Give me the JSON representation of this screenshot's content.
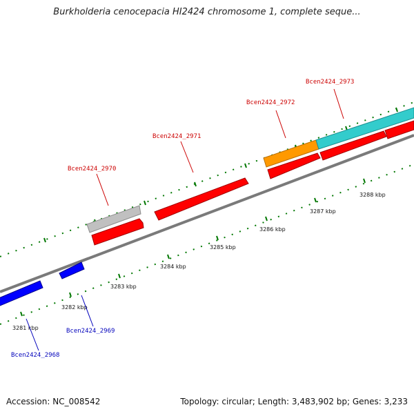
{
  "title": "Burkholderia cenocepacia HI2424 chromosome 1, complete seque...",
  "footer": {
    "accession": "Accession: NC_008542",
    "summary": "Topology: circular; Length: 3,483,902 bp; Genes: 3,233"
  },
  "colors": {
    "forward_label": "#cc0000",
    "reverse_label": "#0000bb",
    "tick": "#007700",
    "backbone": "#7a7a7a",
    "cds": "#ff0000",
    "rna": "#c0c0c0",
    "orange_feature": "#ff9900",
    "cyan_feature": "#33cccc",
    "reverse_feature": "#0000ff"
  },
  "kbp_ticks": [
    "3281 kbp",
    "3282 kbp",
    "3283 kbp",
    "3284 kbp",
    "3285 kbp",
    "3286 kbp",
    "3287 kbp",
    "3288 kbp"
  ],
  "gene_labels": [
    {
      "text": "Bcen2424_2968",
      "strand": "reverse"
    },
    {
      "text": "Bcen2424_2969",
      "strand": "reverse"
    },
    {
      "text": "Bcen2424_2970",
      "strand": "forward"
    },
    {
      "text": "Bcen2424_2971",
      "strand": "forward"
    },
    {
      "text": "Bcen2424_2972",
      "strand": "forward"
    },
    {
      "text": "Bcen2424_2973",
      "strand": "forward"
    }
  ]
}
